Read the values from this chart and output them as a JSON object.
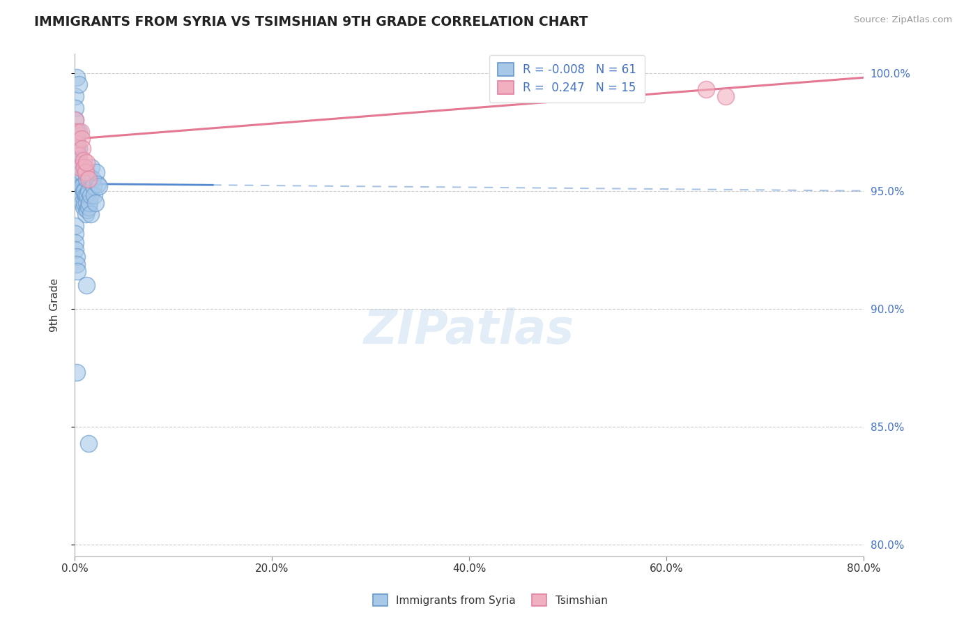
{
  "title": "IMMIGRANTS FROM SYRIA VS TSIMSHIAN 9TH GRADE CORRELATION CHART",
  "source_text": "Source: ZipAtlas.com",
  "ylabel": "9th Grade",
  "legend_label1": "Immigrants from Syria",
  "legend_label2": "Tsimshian",
  "R1": -0.008,
  "N1": 61,
  "R2": 0.247,
  "N2": 15,
  "xlim": [
    0.0,
    0.8
  ],
  "ylim": [
    0.795,
    1.008
  ],
  "xtick_labels": [
    "0.0%",
    "20.0%",
    "40.0%",
    "60.0%",
    "80.0%"
  ],
  "xtick_vals": [
    0.0,
    0.2,
    0.4,
    0.6,
    0.8
  ],
  "ytick_labels": [
    "80.0%",
    "85.0%",
    "90.0%",
    "95.0%",
    "100.0%"
  ],
  "ytick_vals": [
    0.8,
    0.85,
    0.9,
    0.95,
    1.0
  ],
  "color_blue_face": "#A8C8E8",
  "color_blue_edge": "#6699CC",
  "color_pink_face": "#F0B0C0",
  "color_pink_edge": "#E080A0",
  "color_blue_line": "#5588CC",
  "color_pink_line": "#E06080",
  "color_grid": "#CCCCCC",
  "background_color": "#FFFFFF",
  "blue_x": [
    0.001,
    0.001,
    0.001,
    0.001,
    0.002,
    0.002,
    0.002,
    0.002,
    0.003,
    0.003,
    0.003,
    0.003,
    0.004,
    0.004,
    0.004,
    0.005,
    0.005,
    0.005,
    0.006,
    0.006,
    0.006,
    0.007,
    0.007,
    0.007,
    0.008,
    0.008,
    0.009,
    0.009,
    0.01,
    0.01,
    0.01,
    0.011,
    0.011,
    0.012,
    0.012,
    0.013,
    0.013,
    0.014,
    0.014,
    0.015,
    0.015,
    0.016,
    0.016,
    0.017,
    0.018,
    0.019,
    0.02,
    0.021,
    0.022,
    0.023,
    0.025,
    0.001,
    0.001,
    0.001,
    0.001,
    0.002,
    0.002,
    0.003,
    0.012,
    0.002,
    0.014
  ],
  "blue_y": [
    0.99,
    0.985,
    0.98,
    0.975,
    0.972,
    0.968,
    0.965,
    0.998,
    0.97,
    0.966,
    0.963,
    0.96,
    0.995,
    0.975,
    0.968,
    0.96,
    0.957,
    0.963,
    0.96,
    0.955,
    0.952,
    0.958,
    0.95,
    0.948,
    0.952,
    0.945,
    0.95,
    0.943,
    0.96,
    0.95,
    0.945,
    0.948,
    0.94,
    0.955,
    0.945,
    0.948,
    0.942,
    0.95,
    0.943,
    0.956,
    0.945,
    0.948,
    0.94,
    0.96,
    0.955,
    0.952,
    0.948,
    0.945,
    0.958,
    0.953,
    0.952,
    0.935,
    0.932,
    0.928,
    0.925,
    0.922,
    0.919,
    0.916,
    0.91,
    0.873,
    0.843
  ],
  "pink_x": [
    0.001,
    0.002,
    0.003,
    0.004,
    0.005,
    0.006,
    0.007,
    0.008,
    0.009,
    0.01,
    0.011,
    0.012,
    0.014,
    0.64,
    0.66
  ],
  "pink_y": [
    0.98,
    0.975,
    0.97,
    0.965,
    0.96,
    0.975,
    0.972,
    0.968,
    0.963,
    0.96,
    0.958,
    0.962,
    0.955,
    0.993,
    0.99
  ],
  "blue_line_x0": 0.0,
  "blue_line_x1": 0.8,
  "blue_line_y0": 0.953,
  "blue_line_y1": 0.95,
  "pink_line_x0": 0.0,
  "pink_line_x1": 0.8,
  "pink_line_y0": 0.972,
  "pink_line_y1": 0.998
}
